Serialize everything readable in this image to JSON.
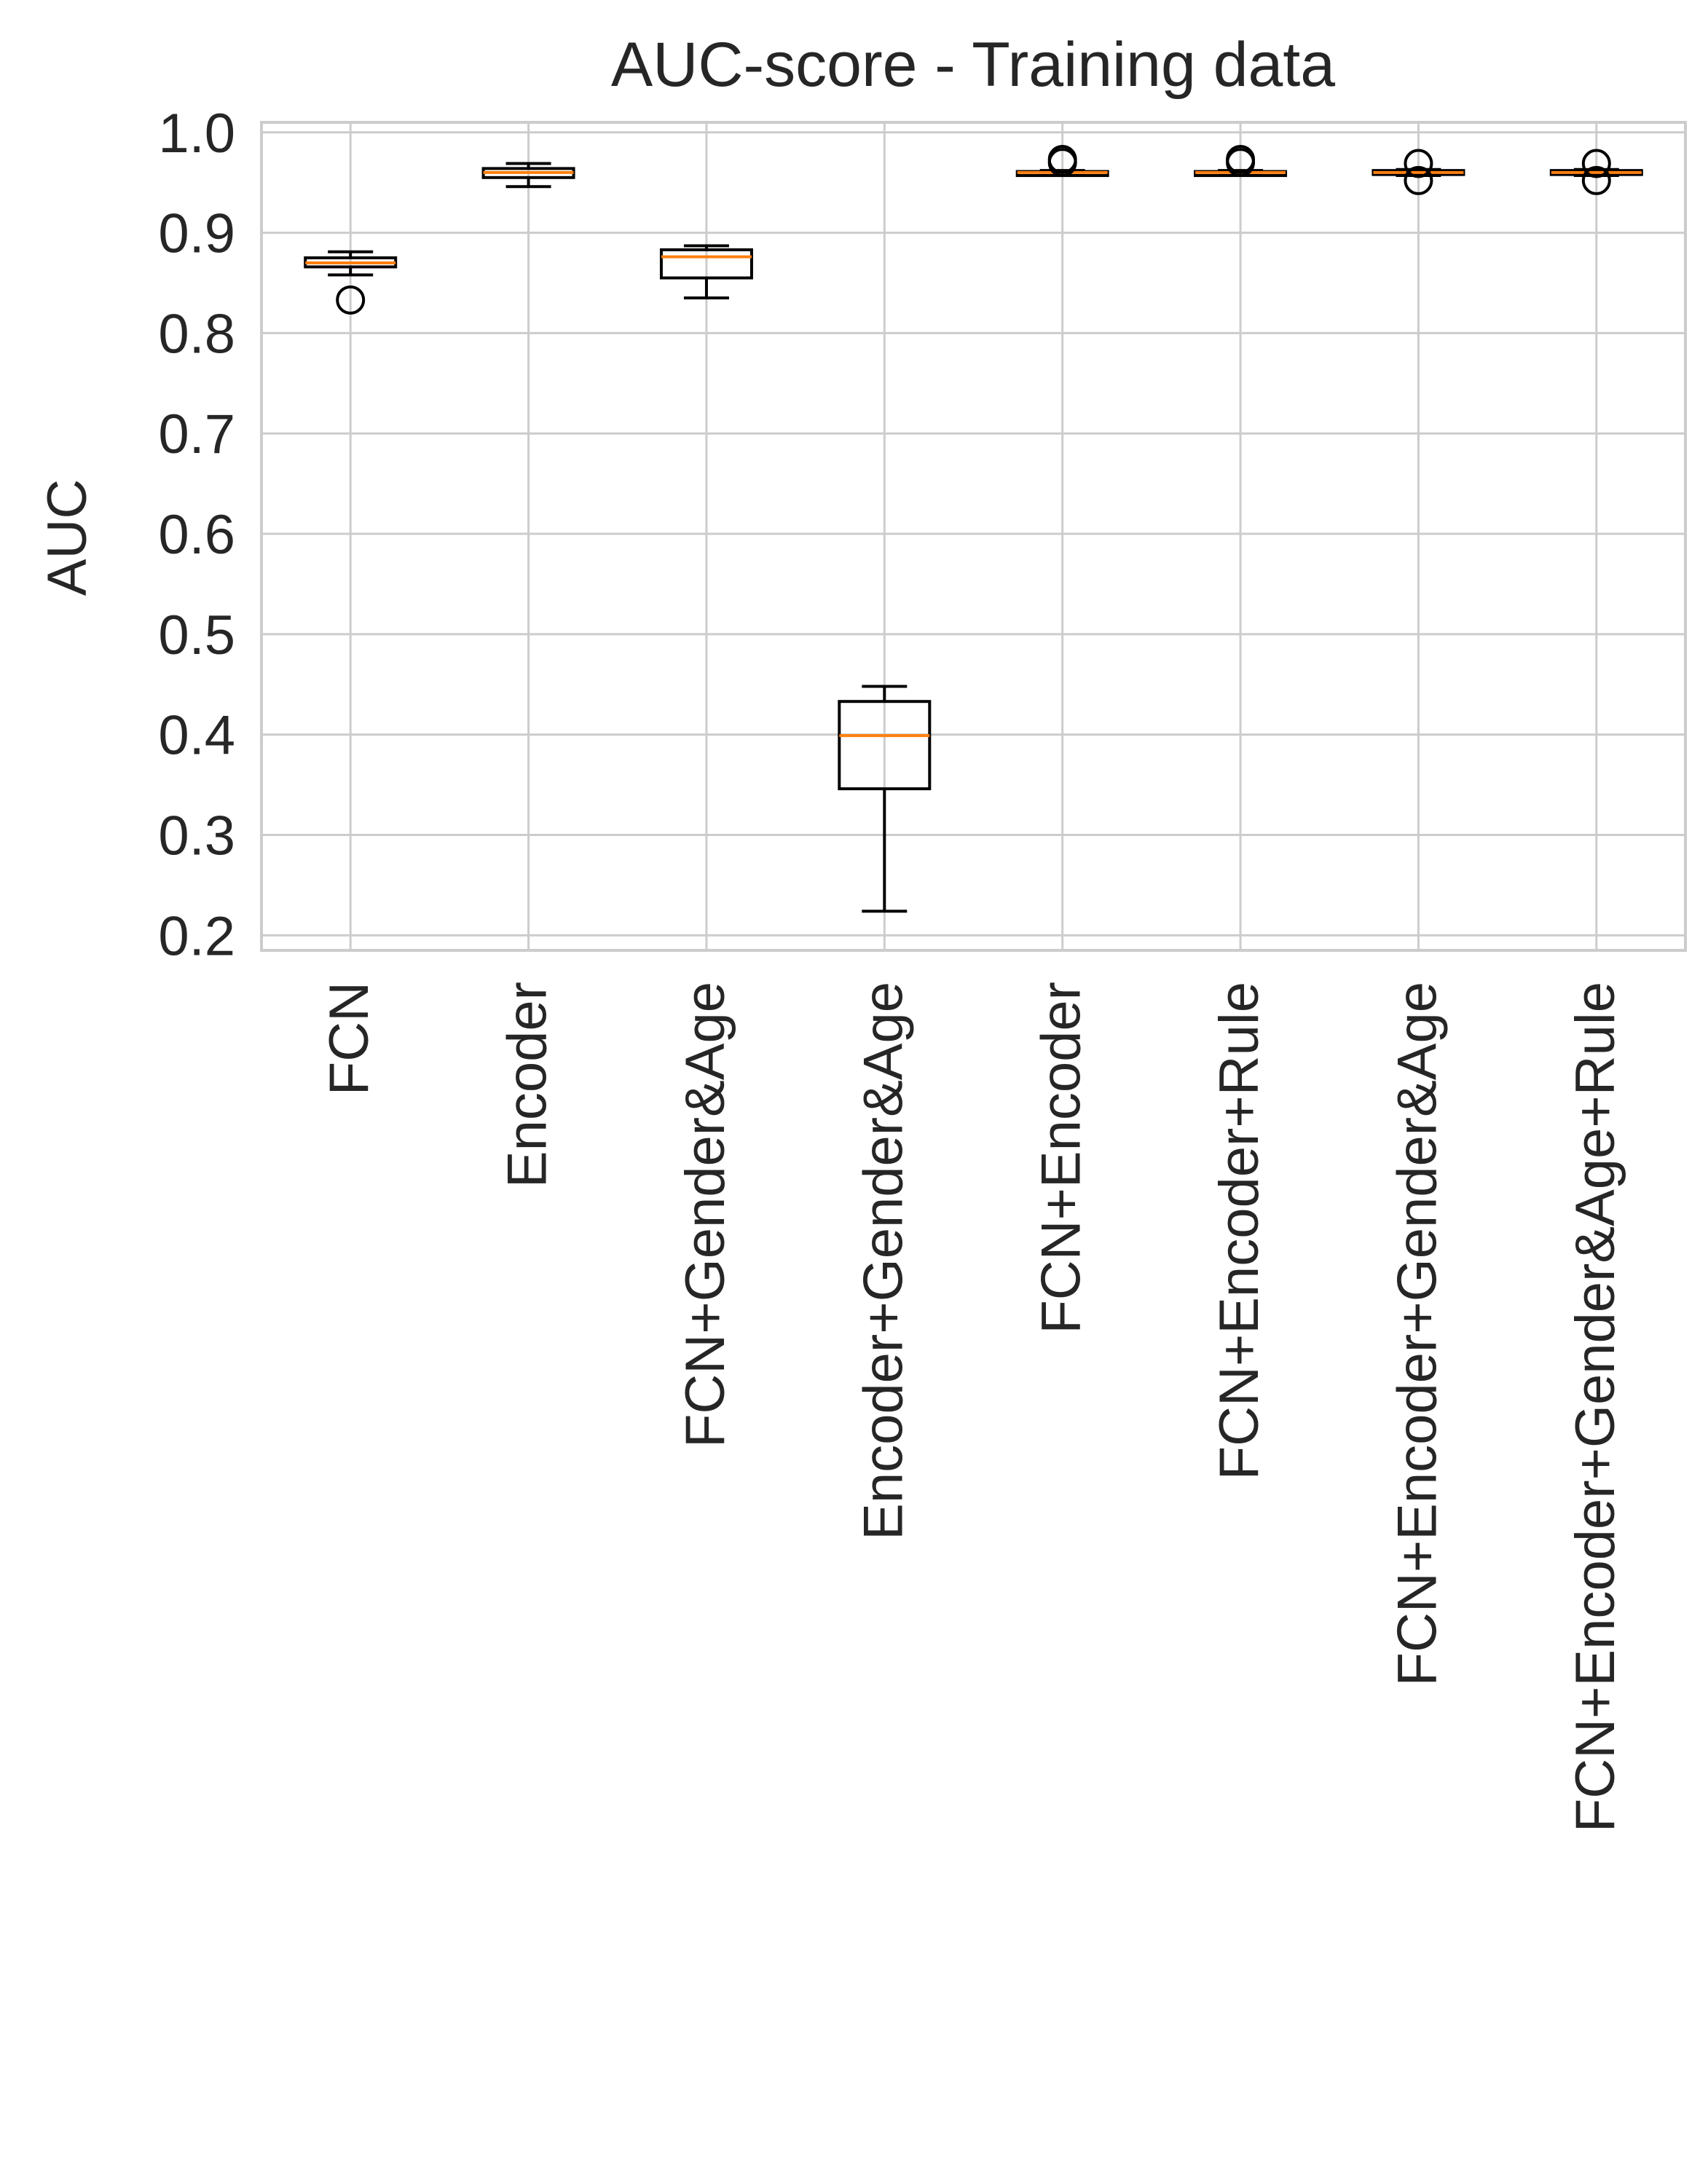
{
  "chart_data": {
    "type": "boxplot",
    "title": "AUC-score - Training data",
    "xlabel": "",
    "ylabel": "AUC",
    "ylim": [
      0.185,
      1.01
    ],
    "yticks": [
      "0.2",
      "0.3",
      "0.4",
      "0.5",
      "0.6",
      "0.7",
      "0.8",
      "0.9",
      "1.0"
    ],
    "grid": true,
    "categories": [
      "FCN",
      "Encoder",
      "FCN+Gender&Age",
      "Encoder+Gender&Age",
      "FCN+Encoder",
      "FCN+Encoder+Rule",
      "FCN+Encoder+Gender&Age",
      "FCN+Encoder+Gender&Age+Rule"
    ],
    "boxes": [
      {
        "whisker_low": 0.858,
        "q1": 0.866,
        "median": 0.87,
        "q3": 0.875,
        "whisker_high": 0.881,
        "outliers": [
          0.833
        ]
      },
      {
        "whisker_low": 0.946,
        "q1": 0.955,
        "median": 0.96,
        "q3": 0.964,
        "whisker_high": 0.969,
        "outliers": []
      },
      {
        "whisker_low": 0.835,
        "q1": 0.855,
        "median": 0.876,
        "q3": 0.883,
        "whisker_high": 0.887,
        "outliers": []
      },
      {
        "whisker_low": 0.224,
        "q1": 0.346,
        "median": 0.399,
        "q3": 0.433,
        "whisker_high": 0.448,
        "outliers": []
      },
      {
        "whisker_low": 0.957,
        "q1": 0.957,
        "median": 0.96,
        "q3": 0.961,
        "whisker_high": 0.962,
        "outliers": [
          0.97,
          0.973
        ]
      },
      {
        "whisker_low": 0.957,
        "q1": 0.957,
        "median": 0.96,
        "q3": 0.961,
        "whisker_high": 0.962,
        "outliers": [
          0.97,
          0.973
        ]
      },
      {
        "whisker_low": 0.957,
        "q1": 0.958,
        "median": 0.96,
        "q3": 0.962,
        "whisker_high": 0.963,
        "outliers": [
          0.969,
          0.952
        ]
      },
      {
        "whisker_low": 0.957,
        "q1": 0.958,
        "median": 0.96,
        "q3": 0.962,
        "whisker_high": 0.963,
        "outliers": [
          0.969,
          0.952
        ]
      }
    ],
    "colors": {
      "box": "#000000",
      "median": "#ff7f0e",
      "grid": "#cccccc",
      "spine": "#cccccc",
      "text": "#262626"
    }
  }
}
